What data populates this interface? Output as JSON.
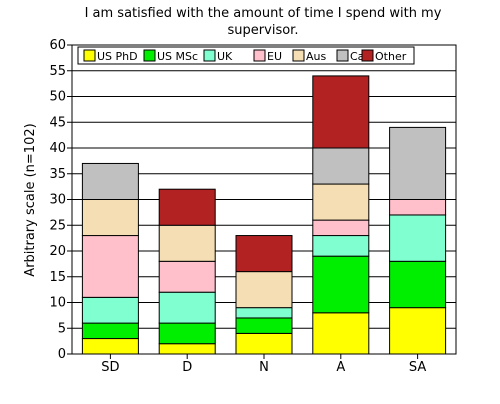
{
  "chart_data": {
    "type": "bar",
    "stacked": true,
    "title_lines": [
      "I am satisfied with the amount of time I spend with my",
      "supervisor."
    ],
    "xlabel": "",
    "ylabel": "Arbitrary scale (n=102)",
    "categories": [
      "SD",
      "D",
      "N",
      "A",
      "SA"
    ],
    "ylim": [
      0,
      60
    ],
    "yticks": [
      "0",
      "5",
      "10",
      "15",
      "20",
      "25",
      "30",
      "35",
      "40",
      "45",
      "50",
      "55",
      "60"
    ],
    "grid": true,
    "legend_position": "top",
    "series": [
      {
        "name": "US PhD",
        "color": "#ffff00",
        "values": [
          3,
          2,
          4,
          8,
          9
        ]
      },
      {
        "name": "US MSc",
        "color": "#00ee00",
        "values": [
          3,
          4,
          3,
          11,
          9
        ]
      },
      {
        "name": "UK",
        "color": "#80ffd0",
        "values": [
          5,
          6,
          2,
          4,
          9
        ]
      },
      {
        "name": "EU",
        "color": "#ffc0cb",
        "values": [
          12,
          6,
          0,
          3,
          3
        ]
      },
      {
        "name": "Aus",
        "color": "#f5deb3",
        "values": [
          7,
          7,
          7,
          7,
          0
        ]
      },
      {
        "name": "Ca",
        "color": "#c0c0c0",
        "values": [
          7,
          0,
          0,
          7,
          14
        ]
      },
      {
        "name": "Other",
        "color": "#b22222",
        "values": [
          0,
          7,
          7,
          14,
          0
        ]
      }
    ]
  }
}
